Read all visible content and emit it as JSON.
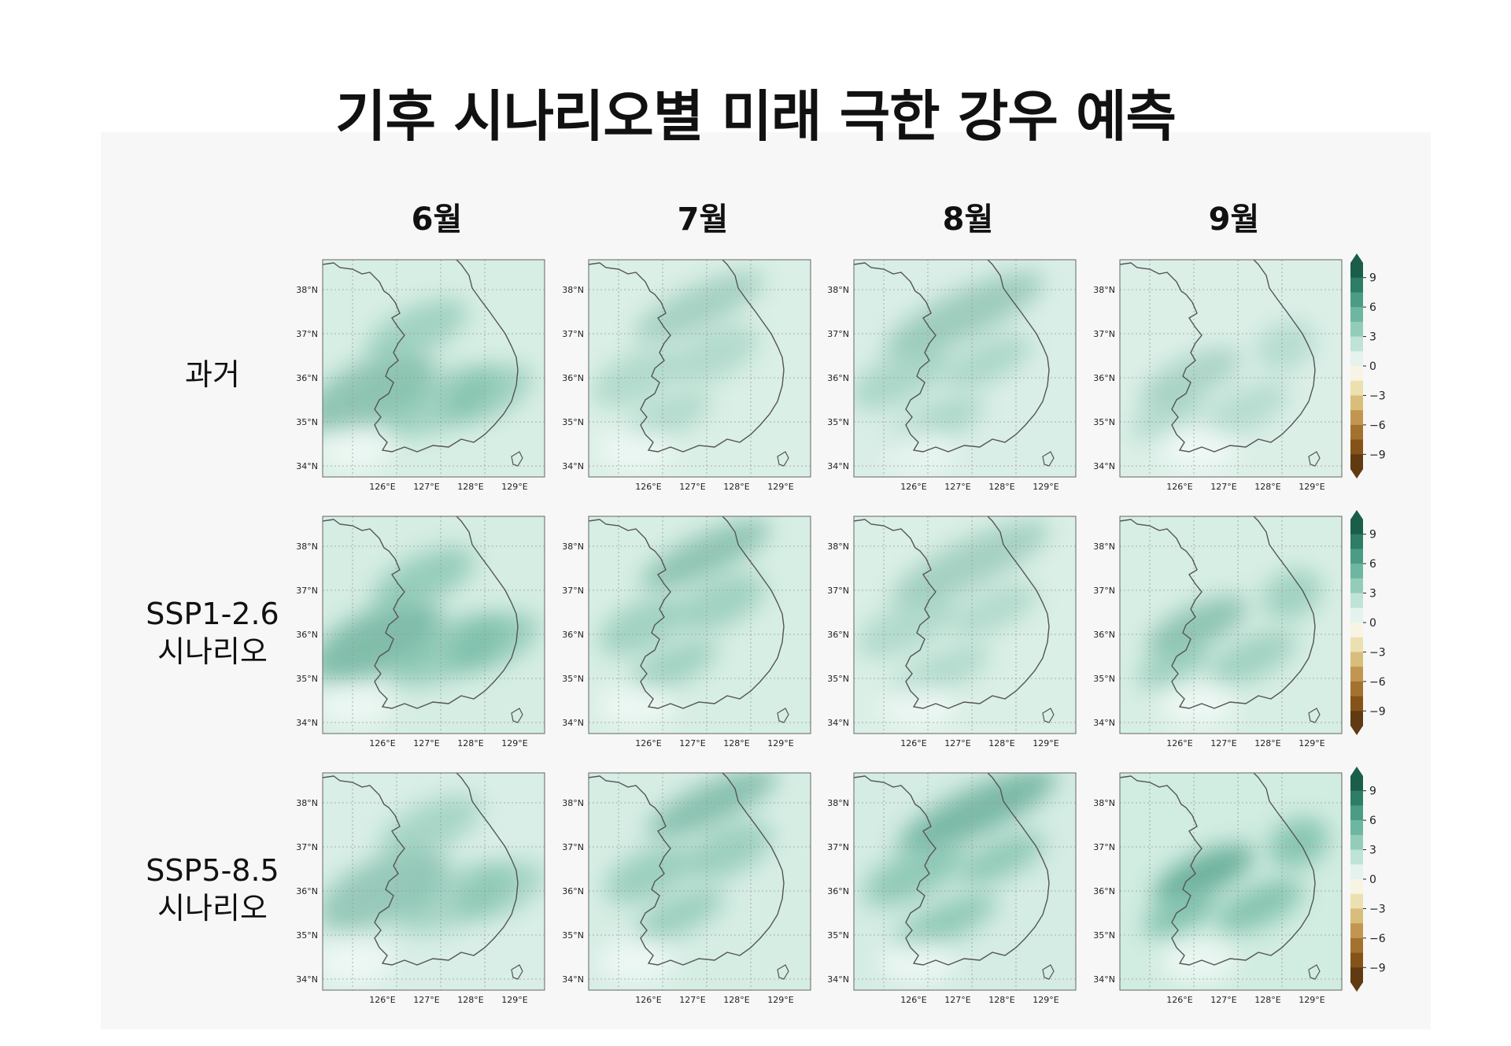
{
  "title": "기후 시나리오별 미래 극한 강우 예측",
  "months": [
    "6월",
    "7월",
    "8월",
    "9월"
  ],
  "rows": [
    {
      "lines": [
        "과거"
      ]
    },
    {
      "lines": [
        "SSP1-2.6",
        "시나리오"
      ]
    },
    {
      "lines": [
        "SSP5-8.5",
        "시나리오"
      ]
    }
  ],
  "lat_ticks": [
    "38°N",
    "37°N",
    "36°N",
    "35°N",
    "34°N"
  ],
  "lon_ticks": [
    "126°E",
    "127°E",
    "128°E",
    "129°E"
  ],
  "colorbar": {
    "ticks": [
      "9",
      "6",
      "3",
      "0",
      "−3",
      "−6",
      "−9"
    ],
    "colors": [
      "#1a5e4a",
      "#2e7d66",
      "#4a9c84",
      "#6db7a0",
      "#93cdb9",
      "#bfe3d6",
      "#e4f3ed",
      "#f7f4e4",
      "#ece0b0",
      "#d9bd7a",
      "#c29650",
      "#a5712f",
      "#85521a",
      "#603a10"
    ]
  },
  "theme": {
    "coast": "#555555",
    "grid": "#9a9a9a"
  }
}
